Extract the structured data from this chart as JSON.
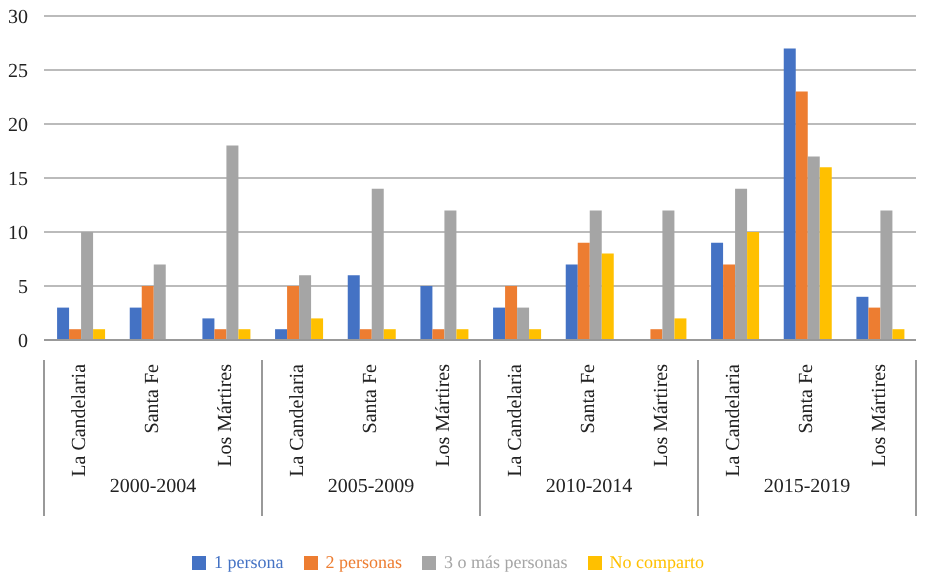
{
  "chart_data": {
    "type": "bar",
    "categories": [
      "La Candelaria",
      "Santa Fe",
      "Los Mártires",
      "La Candelaria",
      "Santa Fe",
      "Los Mártires",
      "La Candelaria",
      "Santa Fe",
      "Los Mártires",
      "La Candelaria",
      "Santa Fe",
      "Los Mártires"
    ],
    "series": [
      {
        "name": "1 persona",
        "color": "#4472c4",
        "values": [
          3,
          3,
          2,
          1,
          6,
          5,
          3,
          7,
          0,
          9,
          27,
          4
        ]
      },
      {
        "name": "2 personas",
        "color": "#ed7d31",
        "values": [
          1,
          5,
          1,
          5,
          1,
          1,
          5,
          9,
          1,
          7,
          23,
          3
        ]
      },
      {
        "name": "3 o más personas",
        "color": "#a5a5a5",
        "values": [
          10,
          7,
          18,
          6,
          14,
          12,
          3,
          12,
          12,
          14,
          17,
          12
        ]
      },
      {
        "name": "No comparto",
        "color": "#ffc000",
        "values": [
          1,
          0,
          1,
          2,
          1,
          1,
          1,
          8,
          2,
          10,
          16,
          1
        ]
      }
    ],
    "annotations": [
      "2000-2004",
      "2005-2009",
      "2010-2014",
      "2015-2019"
    ],
    "ylim": [
      0,
      30
    ],
    "yticks": [
      0,
      5,
      10,
      15,
      20,
      25,
      30
    ],
    "grid": "y",
    "legend": "bottom"
  }
}
